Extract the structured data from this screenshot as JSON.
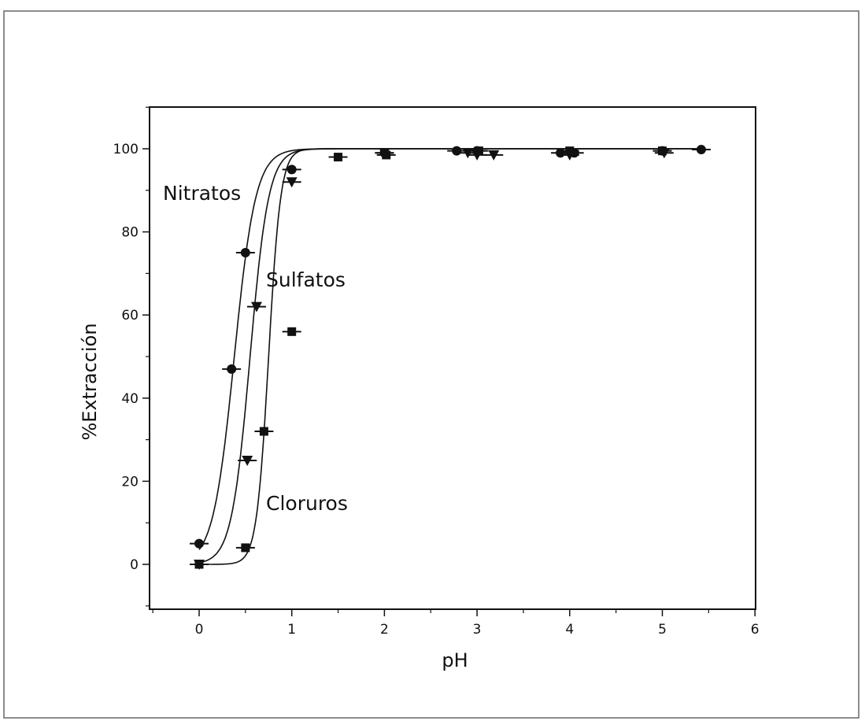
{
  "chart_data": {
    "type": "scatter",
    "title": "",
    "xlabel": "pH",
    "ylabel": "%Extracción",
    "xlim": [
      -0.5,
      6
    ],
    "ylim": [
      -10,
      110
    ],
    "xticks": [
      0,
      1,
      2,
      3,
      4,
      5,
      6
    ],
    "xtick_labels": [
      "0",
      "1",
      "2",
      "3",
      "4",
      "5",
      "6"
    ],
    "yticks": [
      0,
      20,
      40,
      60,
      80,
      100
    ],
    "ytick_labels": [
      "0",
      "20",
      "40",
      "60",
      "80",
      "100"
    ],
    "grid": false,
    "legend": "none",
    "series": [
      {
        "name": "Nitratos",
        "marker": "circle",
        "fit": "sigmoid",
        "points": [
          {
            "x": 0.0,
            "y": 5
          },
          {
            "x": 0.35,
            "y": 47
          },
          {
            "x": 0.5,
            "y": 75
          },
          {
            "x": 1.0,
            "y": 95
          },
          {
            "x": 2.0,
            "y": 99
          },
          {
            "x": 2.78,
            "y": 99.5
          },
          {
            "x": 3.0,
            "y": 99.5
          },
          {
            "x": 3.9,
            "y": 99
          },
          {
            "x": 4.05,
            "y": 99
          },
          {
            "x": 5.0,
            "y": 99.5
          },
          {
            "x": 5.42,
            "y": 99.8
          }
        ]
      },
      {
        "name": "Sulfatos",
        "marker": "triangle-down",
        "fit": "sigmoid",
        "points": [
          {
            "x": 0.0,
            "y": 0
          },
          {
            "x": 0.52,
            "y": 25
          },
          {
            "x": 0.62,
            "y": 62
          },
          {
            "x": 1.0,
            "y": 92
          },
          {
            "x": 2.0,
            "y": 99
          },
          {
            "x": 2.9,
            "y": 99
          },
          {
            "x": 3.0,
            "y": 98.5
          },
          {
            "x": 3.18,
            "y": 98.5
          },
          {
            "x": 4.0,
            "y": 98.5
          },
          {
            "x": 5.02,
            "y": 99
          }
        ]
      },
      {
        "name": "Cloruros",
        "marker": "square",
        "fit": "sigmoid",
        "points": [
          {
            "x": 0.0,
            "y": 0
          },
          {
            "x": 0.5,
            "y": 4
          },
          {
            "x": 0.7,
            "y": 32
          },
          {
            "x": 1.0,
            "y": 56
          },
          {
            "x": 1.5,
            "y": 98
          },
          {
            "x": 2.02,
            "y": 98.5
          },
          {
            "x": 3.02,
            "y": 99.5
          },
          {
            "x": 4.0,
            "y": 99.5
          },
          {
            "x": 5.0,
            "y": 99.5
          }
        ]
      }
    ],
    "fit_curves": [
      {
        "series": "Nitratos",
        "midpoint": 0.38,
        "slope": 0.115
      },
      {
        "series": "Sulfatos",
        "midpoint": 0.55,
        "slope": 0.1
      },
      {
        "series": "Cloruros",
        "midpoint": 0.75,
        "slope": 0.065
      }
    ],
    "annotations": [
      {
        "text": "Nitratos",
        "series": "Nitratos"
      },
      {
        "text": "Sulfatos",
        "series": "Sulfatos"
      },
      {
        "text": "Cloruros",
        "series": "Cloruros"
      }
    ]
  }
}
